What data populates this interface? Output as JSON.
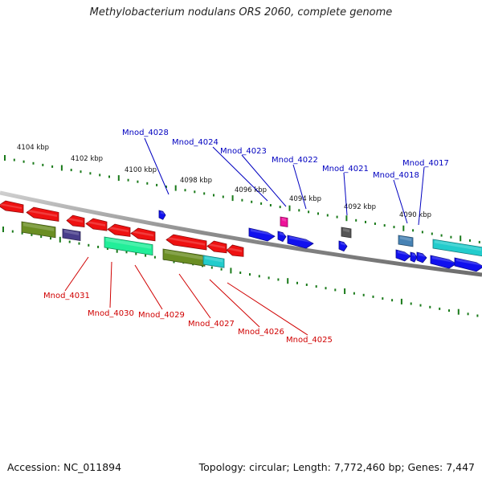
{
  "title": "Methylobacterium nodulans ORS 2060, complete genome",
  "footer": {
    "accession": "Accession: NC_011894",
    "summary": "Topology: circular; Length: 7,772,460 bp; Genes: 7,447"
  },
  "colors": {
    "backbone": "#8a8a8a",
    "tick": "#1a7a1a",
    "upper_label": "#0000c0",
    "lower_label": "#d00000",
    "red": "#ee1111",
    "blue": "#1111ee",
    "olive": "#6b8e23",
    "cyan": "#22cccc",
    "seagreen": "#22ee99",
    "slate": "#483d8b",
    "magenta": "#ee1199",
    "gray": "#555555",
    "steel": "#4682b4"
  },
  "scale": {
    "unit": "kbp",
    "labels": [
      "4104 kbp",
      "4102 kbp",
      "4100 kbp",
      "4098 kbp",
      "4096 kbp",
      "4094 kbp",
      "4092 kbp",
      "4090 kbp"
    ]
  },
  "upper_labels": [
    "Mnod_4028",
    "Mnod_4024",
    "Mnod_4023",
    "Mnod_4022",
    "Mnod_4021",
    "Mnod_4018",
    "Mnod_4017"
  ],
  "lower_labels": [
    "Mnod_4031",
    "Mnod_4030",
    "Mnod_4029",
    "Mnod_4027",
    "Mnod_4026",
    "Mnod_4025"
  ],
  "features": [
    {
      "color": "red",
      "dir": "rev"
    },
    {
      "color": "red",
      "dir": "rev"
    },
    {
      "color": "red",
      "dir": "rev"
    },
    {
      "color": "red",
      "dir": "rev"
    },
    {
      "color": "red",
      "dir": "rev"
    },
    {
      "color": "red",
      "dir": "rev"
    },
    {
      "color": "red",
      "dir": "rev"
    },
    {
      "color": "red",
      "dir": "rev"
    },
    {
      "color": "red",
      "dir": "rev"
    },
    {
      "color": "blue",
      "dir": "fwd"
    },
    {
      "color": "blue",
      "dir": "fwd"
    },
    {
      "color": "blue",
      "dir": "fwd"
    },
    {
      "color": "blue",
      "dir": "fwd"
    },
    {
      "color": "blue",
      "dir": "fwd"
    },
    {
      "color": "blue",
      "dir": "fwd"
    },
    {
      "color": "blue",
      "dir": "fwd"
    },
    {
      "color": "blue",
      "dir": "fwd"
    },
    {
      "color": "blue",
      "dir": "fwd"
    },
    {
      "color": "blue",
      "dir": "fwd"
    },
    {
      "color": "olive",
      "dir": "none"
    },
    {
      "color": "olive",
      "dir": "none"
    },
    {
      "color": "cyan",
      "dir": "none"
    },
    {
      "color": "cyan",
      "dir": "none"
    },
    {
      "color": "seagreen",
      "dir": "none"
    },
    {
      "color": "slate",
      "dir": "none"
    },
    {
      "color": "magenta",
      "dir": "none"
    },
    {
      "color": "gray",
      "dir": "none"
    },
    {
      "color": "steel",
      "dir": "none"
    }
  ]
}
